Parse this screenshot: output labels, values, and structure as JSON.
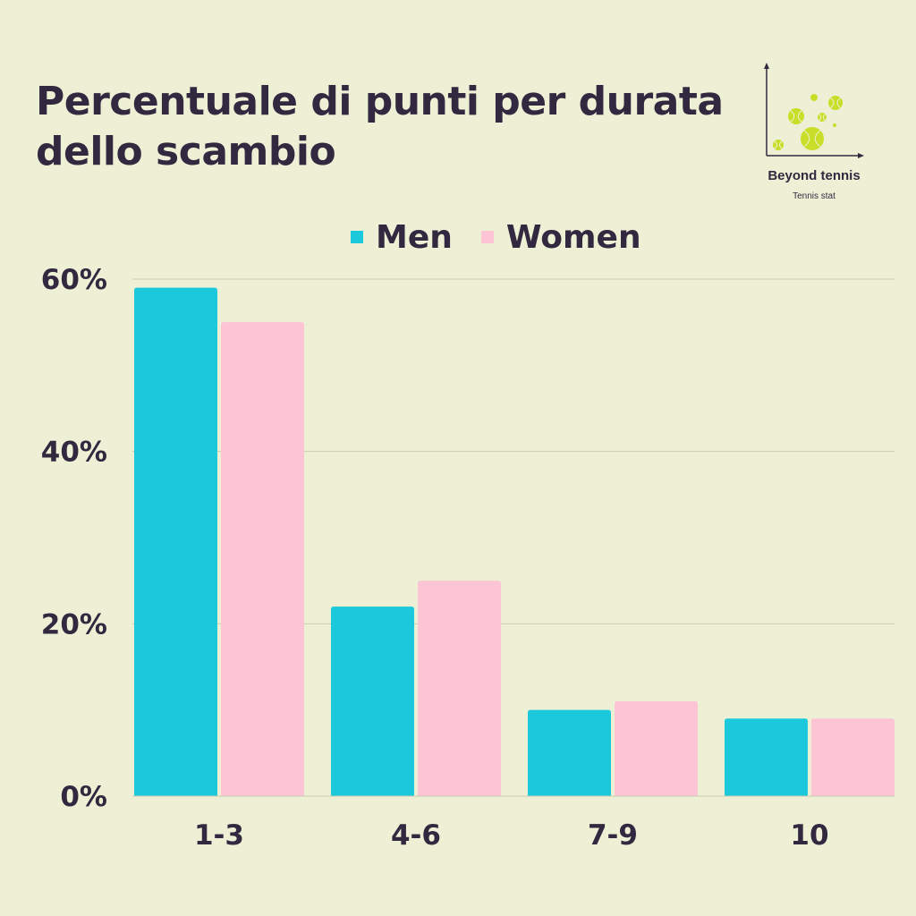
{
  "chart_data": {
    "type": "bar",
    "title": "Percentuale di punti per durata dello scambio",
    "categories": [
      "1-3",
      "4-6",
      "7-9",
      "10"
    ],
    "series": [
      {
        "name": "Men",
        "color": "#1cc8dc",
        "values": [
          59,
          22,
          10,
          9
        ]
      },
      {
        "name": "Women",
        "color": "#fcc4d4",
        "values": [
          55,
          25,
          11,
          9
        ]
      }
    ],
    "ylim": [
      0,
      60
    ],
    "yticks": [
      "0%",
      "20%",
      "40%",
      "60%"
    ],
    "ytick_values": [
      0,
      20,
      40,
      60
    ],
    "grid": true,
    "legend": "top"
  },
  "logo": {
    "name": "Beyond tennis",
    "subtitle": "Tennis stat",
    "ball_color": "#c8de28"
  }
}
